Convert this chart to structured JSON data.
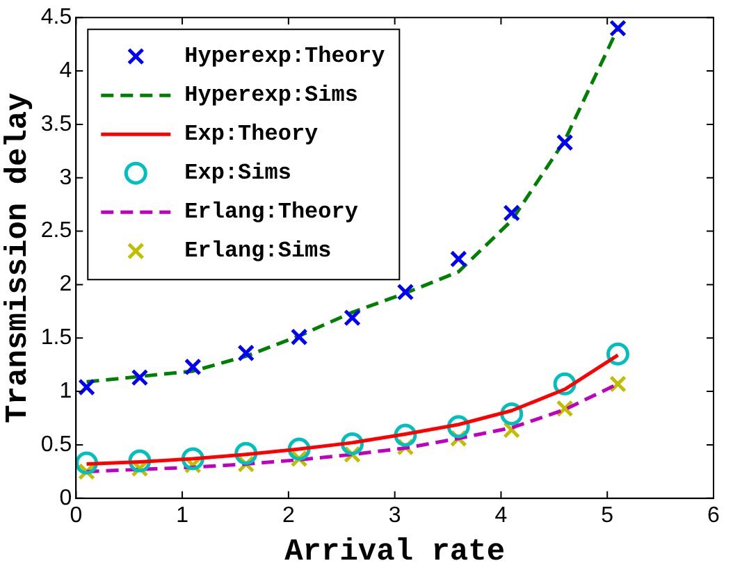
{
  "chart_data": {
    "type": "line",
    "xlabel": "Arrival rate",
    "ylabel": "Transmission delay",
    "x": [
      0.1,
      0.6,
      1.1,
      1.6,
      2.1,
      2.6,
      3.1,
      3.6,
      4.1,
      4.6,
      5.1
    ],
    "xlim": [
      0,
      6
    ],
    "xticks": [
      0,
      1,
      2,
      3,
      4,
      5,
      6
    ],
    "ylim": [
      0,
      4.5
    ],
    "yticks": [
      0,
      0.5,
      1,
      1.5,
      2,
      2.5,
      3,
      3.5,
      4,
      4.5
    ],
    "grid": false,
    "legend": "top left",
    "series": [
      {
        "name": "Hyperexp:Theory",
        "type": "scatter",
        "color": "#0000ff",
        "marker": "cross",
        "values": [
          1.04,
          1.13,
          1.23,
          1.36,
          1.51,
          1.69,
          1.93,
          2.24,
          2.67,
          3.33,
          4.4
        ]
      },
      {
        "name": "Hyperexp:Sims",
        "type": "line",
        "color": "#008000",
        "line_style": "dashed",
        "marker": "none",
        "values": [
          1.09,
          1.14,
          1.19,
          1.33,
          1.52,
          1.74,
          1.92,
          2.12,
          2.6,
          3.35,
          4.4
        ]
      },
      {
        "name": "Exp:Theory",
        "type": "line",
        "color": "#ff0000",
        "line_style": "solid",
        "marker": "none",
        "values": [
          0.32,
          0.34,
          0.37,
          0.41,
          0.46,
          0.52,
          0.6,
          0.69,
          0.82,
          1.02,
          1.34
        ]
      },
      {
        "name": "Exp:Sims",
        "type": "scatter",
        "color": "#00bfbf",
        "marker": "circle",
        "values": [
          0.33,
          0.35,
          0.37,
          0.42,
          0.46,
          0.51,
          0.59,
          0.67,
          0.79,
          1.07,
          1.35
        ]
      },
      {
        "name": "Erlang:Theory",
        "type": "line",
        "color": "#bf00bf",
        "line_style": "dashed",
        "marker": "none",
        "values": [
          0.25,
          0.27,
          0.29,
          0.32,
          0.36,
          0.41,
          0.47,
          0.56,
          0.66,
          0.83,
          1.07
        ]
      },
      {
        "name": "Erlang:Sims",
        "type": "scatter",
        "color": "#bfbf00",
        "marker": "cross",
        "values": [
          0.25,
          0.28,
          0.31,
          0.32,
          0.37,
          0.41,
          0.48,
          0.56,
          0.64,
          0.84,
          1.07
        ]
      }
    ]
  }
}
